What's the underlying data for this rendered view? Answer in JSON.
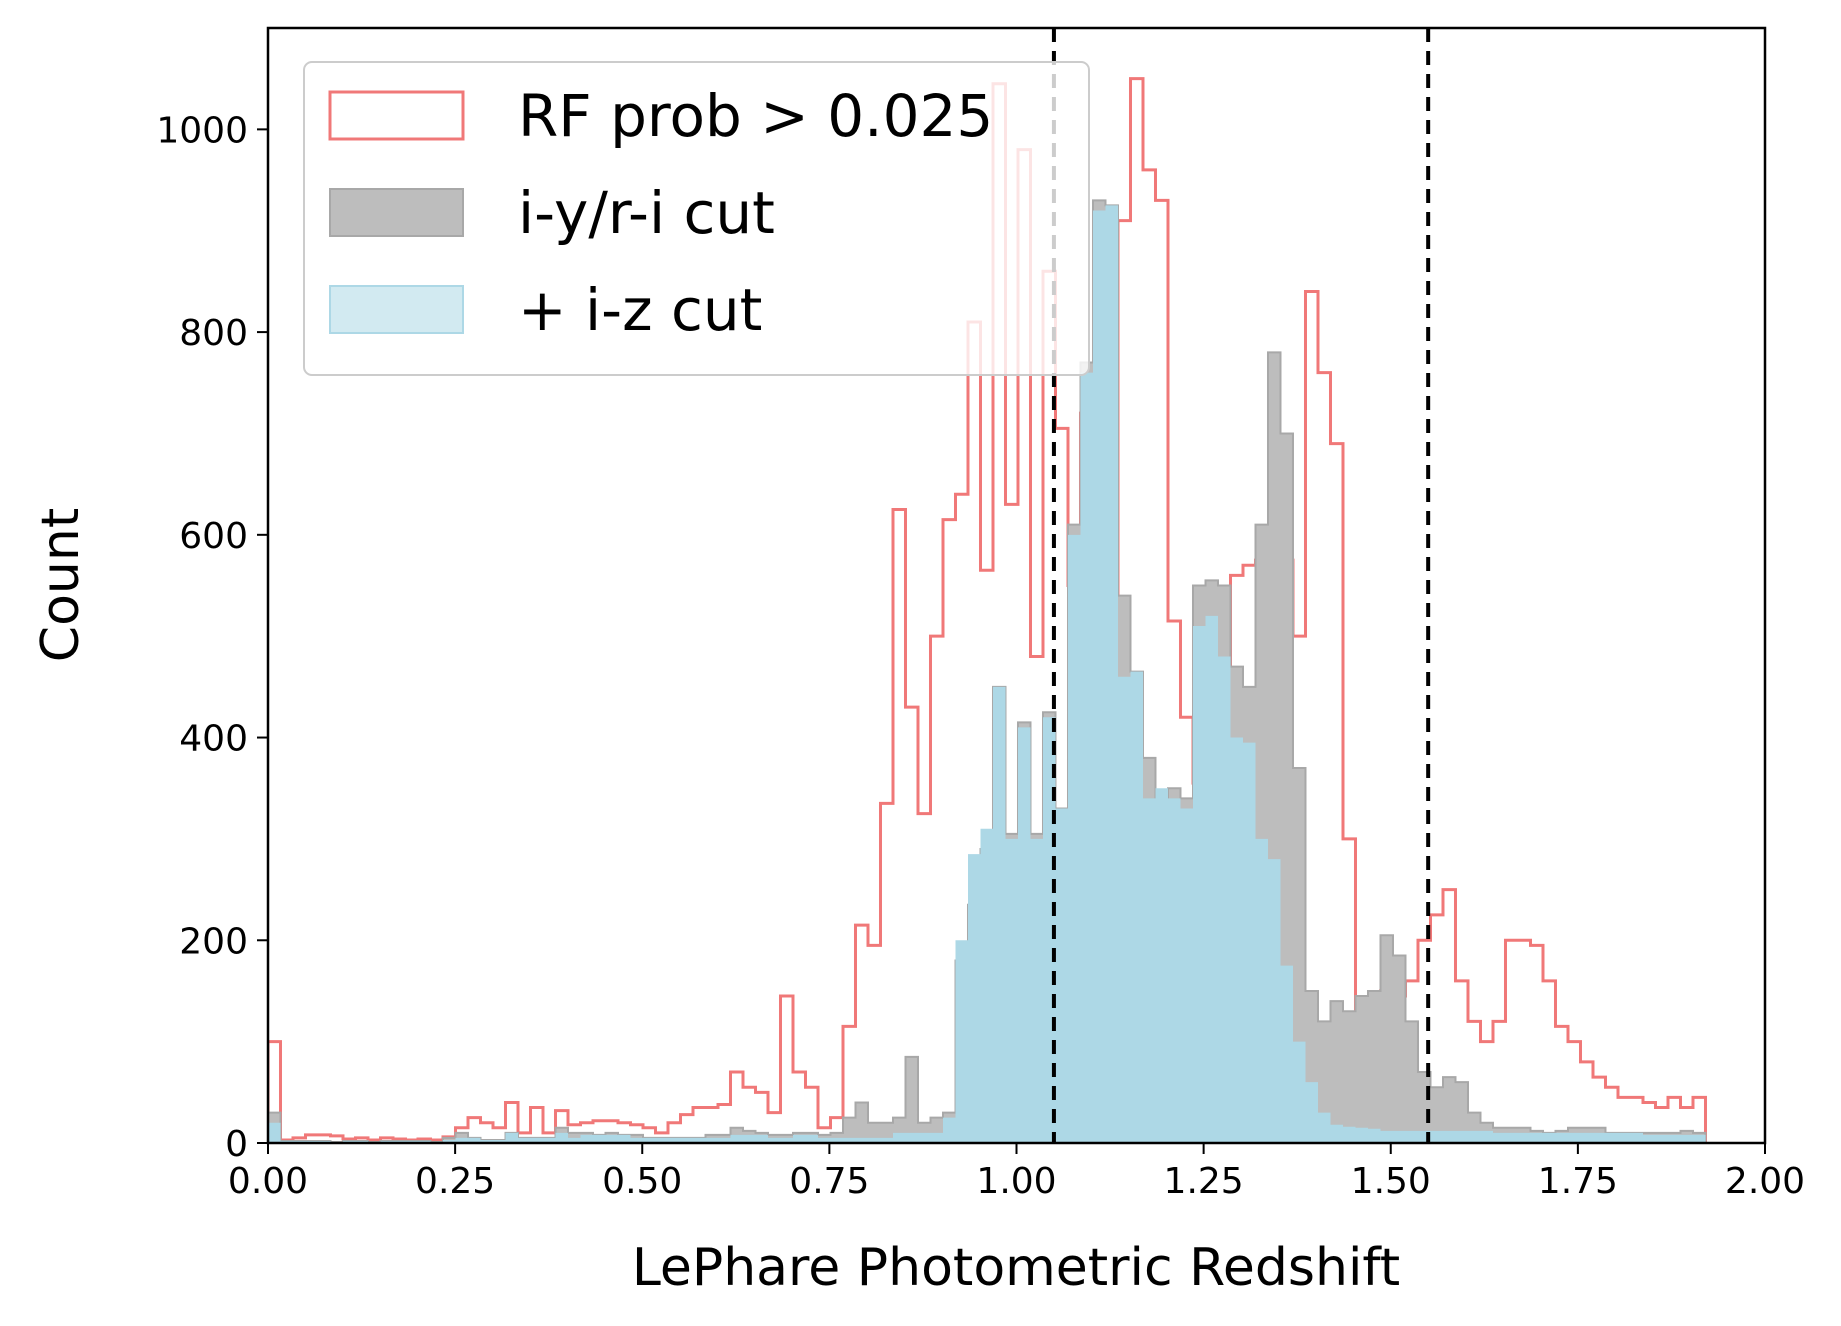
{
  "chart_data": {
    "type": "histogram",
    "xlabel": "LePhare Photometric Redshift",
    "ylabel": "Count",
    "xlim": [
      0,
      2
    ],
    "ylim": [
      0,
      1100
    ],
    "xticks": [
      0,
      0.25,
      0.5,
      0.75,
      1.0,
      1.25,
      1.5,
      1.75,
      2.0
    ],
    "xtick_labels": [
      "0.00",
      "0.25",
      "0.50",
      "0.75",
      "1.00",
      "1.25",
      "1.50",
      "1.75",
      "2.00"
    ],
    "yticks": [
      0,
      200,
      400,
      600,
      800,
      1000
    ],
    "ytick_labels": [
      "0",
      "200",
      "400",
      "600",
      "800",
      "1000"
    ],
    "bin_edges_start": 0,
    "bin_width": 0.0167,
    "grid": false,
    "legend_position": "upper-left",
    "vlines": [
      1.05,
      1.55
    ],
    "vline_color": "#000000",
    "series": [
      {
        "name": "RF prob > 0.025",
        "style": "step",
        "color": "#f07878",
        "values": [
          100,
          3,
          5,
          8,
          8,
          7,
          4,
          5,
          3,
          5,
          4,
          3,
          4,
          3,
          6,
          15,
          25,
          20,
          15,
          40,
          10,
          35,
          10,
          32,
          18,
          20,
          22,
          22,
          20,
          18,
          15,
          10,
          20,
          28,
          35,
          35,
          38,
          70,
          55,
          50,
          30,
          145,
          70,
          55,
          15,
          25,
          115,
          215,
          195,
          335,
          625,
          430,
          325,
          500,
          615,
          640,
          810,
          565,
          1045,
          630,
          980,
          480,
          860,
          705,
          550,
          720,
          620,
          520,
          910,
          1050,
          960,
          930,
          515,
          420,
          355,
          375,
          345,
          560,
          570,
          575,
          545,
          575,
          500,
          840,
          760,
          690,
          300,
          125,
          130,
          150,
          145,
          160,
          200,
          225,
          250,
          160,
          120,
          100,
          120,
          200,
          200,
          195,
          160,
          115,
          100,
          80,
          65,
          55,
          45,
          45,
          40,
          35,
          45,
          35,
          45
        ]
      },
      {
        "name": "i-y/r-i cut",
        "style": "filled",
        "color": "#bdbdbd",
        "edge": "#a8a8a8",
        "values": [
          30,
          2,
          2,
          2,
          2,
          1,
          2,
          2,
          1,
          2,
          2,
          2,
          2,
          1,
          5,
          10,
          5,
          3,
          3,
          10,
          5,
          5,
          5,
          15,
          10,
          10,
          8,
          10,
          8,
          8,
          5,
          5,
          5,
          5,
          5,
          8,
          8,
          15,
          12,
          10,
          8,
          8,
          10,
          10,
          8,
          10,
          25,
          40,
          20,
          20,
          25,
          85,
          20,
          25,
          30,
          180,
          235,
          290,
          450,
          305,
          415,
          305,
          425,
          330,
          610,
          770,
          930,
          925,
          540,
          465,
          380,
          340,
          350,
          340,
          550,
          555,
          550,
          470,
          450,
          610,
          780,
          700,
          370,
          150,
          120,
          140,
          130,
          145,
          150,
          205,
          185,
          120,
          70,
          55,
          65,
          60,
          30,
          20,
          15,
          15,
          15,
          12,
          10,
          12,
          15,
          15,
          15,
          10,
          10,
          10,
          10,
          10,
          10,
          12,
          10
        ]
      },
      {
        "name": "+ i-z cut",
        "style": "filled",
        "color": "#add8e6",
        "values": [
          20,
          2,
          2,
          2,
          2,
          1,
          2,
          2,
          1,
          2,
          2,
          2,
          2,
          1,
          3,
          5,
          5,
          3,
          3,
          10,
          5,
          5,
          5,
          10,
          5,
          8,
          8,
          8,
          8,
          5,
          5,
          5,
          5,
          5,
          5,
          5,
          5,
          8,
          8,
          8,
          5,
          5,
          8,
          8,
          5,
          5,
          5,
          5,
          5,
          5,
          10,
          10,
          10,
          10,
          25,
          200,
          285,
          310,
          450,
          300,
          410,
          300,
          420,
          330,
          600,
          760,
          920,
          925,
          460,
          465,
          340,
          350,
          340,
          330,
          510,
          520,
          480,
          400,
          395,
          300,
          280,
          175,
          100,
          60,
          30,
          18,
          16,
          15,
          14,
          12,
          12,
          12,
          12,
          12,
          12,
          12,
          12,
          12,
          10,
          10,
          10,
          10,
          10,
          10,
          10,
          10,
          10,
          10,
          10,
          10,
          8,
          8,
          8,
          8,
          8
        ]
      }
    ]
  }
}
